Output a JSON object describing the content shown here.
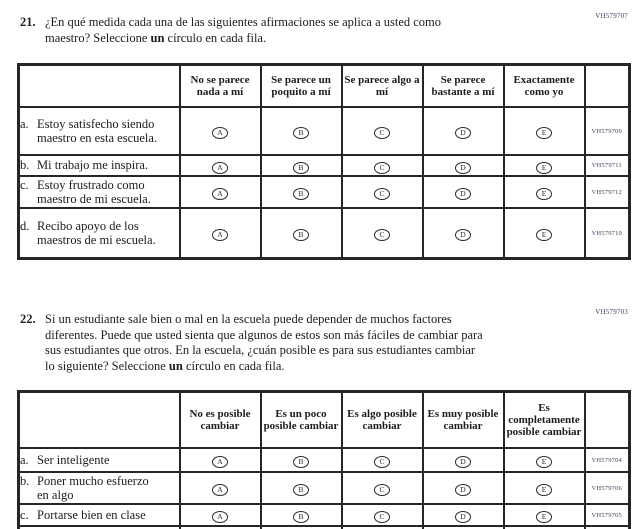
{
  "options": [
    "A",
    "B",
    "C",
    "D",
    "E"
  ],
  "colors": {
    "ink": "#1c1c1c",
    "table_border": "#262626",
    "code_text": "#41415a",
    "background": "#ffffff"
  },
  "q21": {
    "number": "21.",
    "code": "VH579707",
    "text_a": "¿En qué medida cada una de las siguientes afirmaciones se aplica a usted como maestro? Seleccione ",
    "bold_word": "un",
    "text_b": " círculo en cada fila.",
    "headers": [
      "No se parece nada a mí",
      "Se parece un poquito a mí",
      "Se parece algo a mí",
      "Se parece bastante a mí",
      "Exactamente como yo"
    ],
    "rows": [
      {
        "letter": "a.",
        "label": "Estoy satisfecho siendo maestro en esta escuela.",
        "code": "VH579709"
      },
      {
        "letter": "b.",
        "label": "Mi trabajo me inspira.",
        "code": "VH579711"
      },
      {
        "letter": "c.",
        "label": "Estoy frustrado como maestro de mi escuela.",
        "code": "VH579712"
      },
      {
        "letter": "d.",
        "label": "Recibo apoyo de los maestros de mi escuela.",
        "code": "VH579710"
      }
    ]
  },
  "q22": {
    "number": "22.",
    "code": "VH579703",
    "text_a": "Si un estudiante sale bien o mal en la escuela puede depender de muchos factores diferentes. Puede que usted sienta que algunos de estos son más fáciles de cambiar para sus estudiantes que otros. En la escuela, ¿cuán posible es para sus estudiantes cambiar lo siguiente? Seleccione ",
    "bold_word": "un",
    "text_b": " círculo en cada fila.",
    "headers": [
      "No es posible cambiar",
      "Es un poco posible cambiar",
      "Es algo posible cambiar",
      "Es muy posible cambiar",
      "Es completamente posible cambiar"
    ],
    "rows": [
      {
        "letter": "a.",
        "label": "Ser inteligente",
        "code": "VH579704"
      },
      {
        "letter": "b.",
        "label": "Poner mucho esfuerzo en algo",
        "code": "VH579706"
      },
      {
        "letter": "c.",
        "label": "Portarse bien en clase",
        "code": "VH579705"
      }
    ]
  }
}
